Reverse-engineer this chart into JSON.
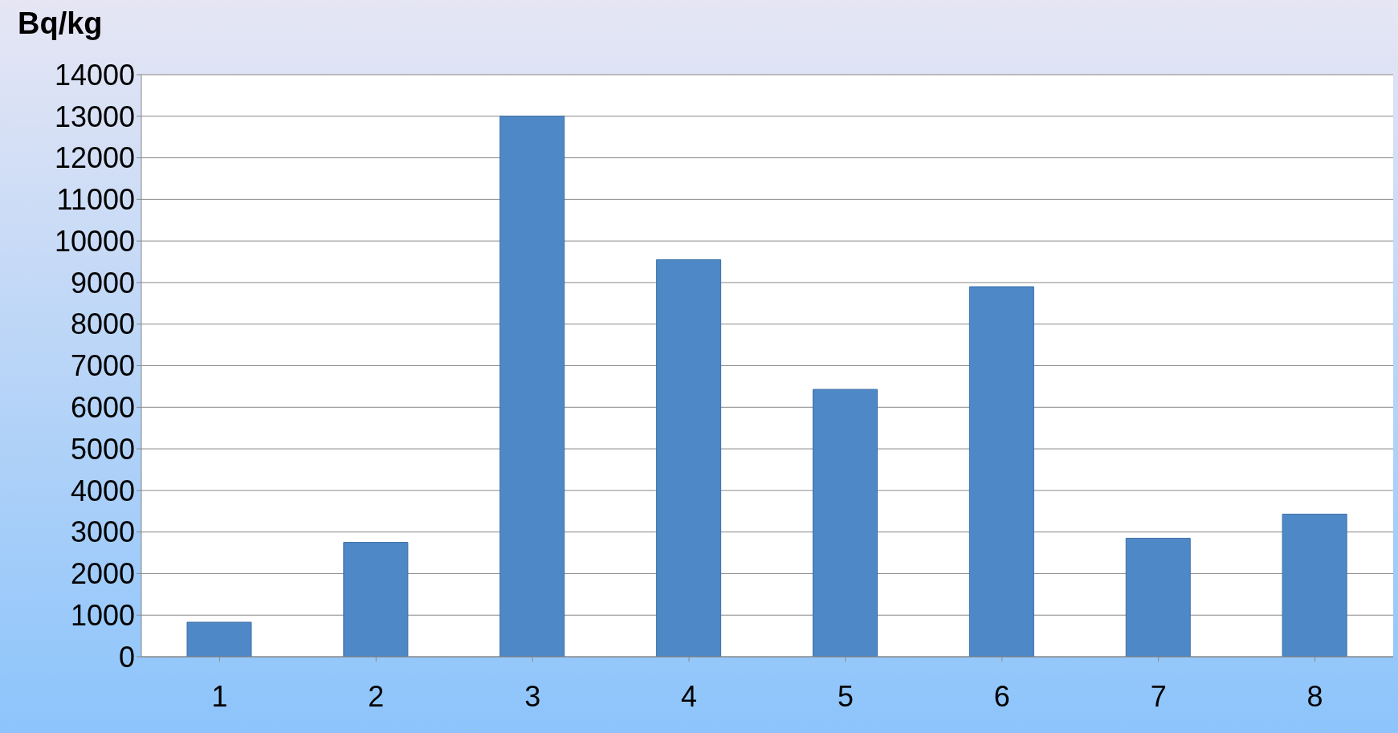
{
  "chart_data": {
    "type": "bar",
    "ylabel": "Bq/kg",
    "categories": [
      "1",
      "2",
      "3",
      "4",
      "5",
      "6",
      "7",
      "8"
    ],
    "values": [
      830,
      2750,
      13000,
      9550,
      6430,
      8900,
      2850,
      3430
    ],
    "color": "#4f88c6",
    "ylim": [
      0,
      14000
    ],
    "yticks": [
      0,
      1000,
      2000,
      3000,
      4000,
      5000,
      6000,
      7000,
      8000,
      9000,
      10000,
      11000,
      12000,
      13000,
      14000
    ],
    "grid": "y"
  }
}
